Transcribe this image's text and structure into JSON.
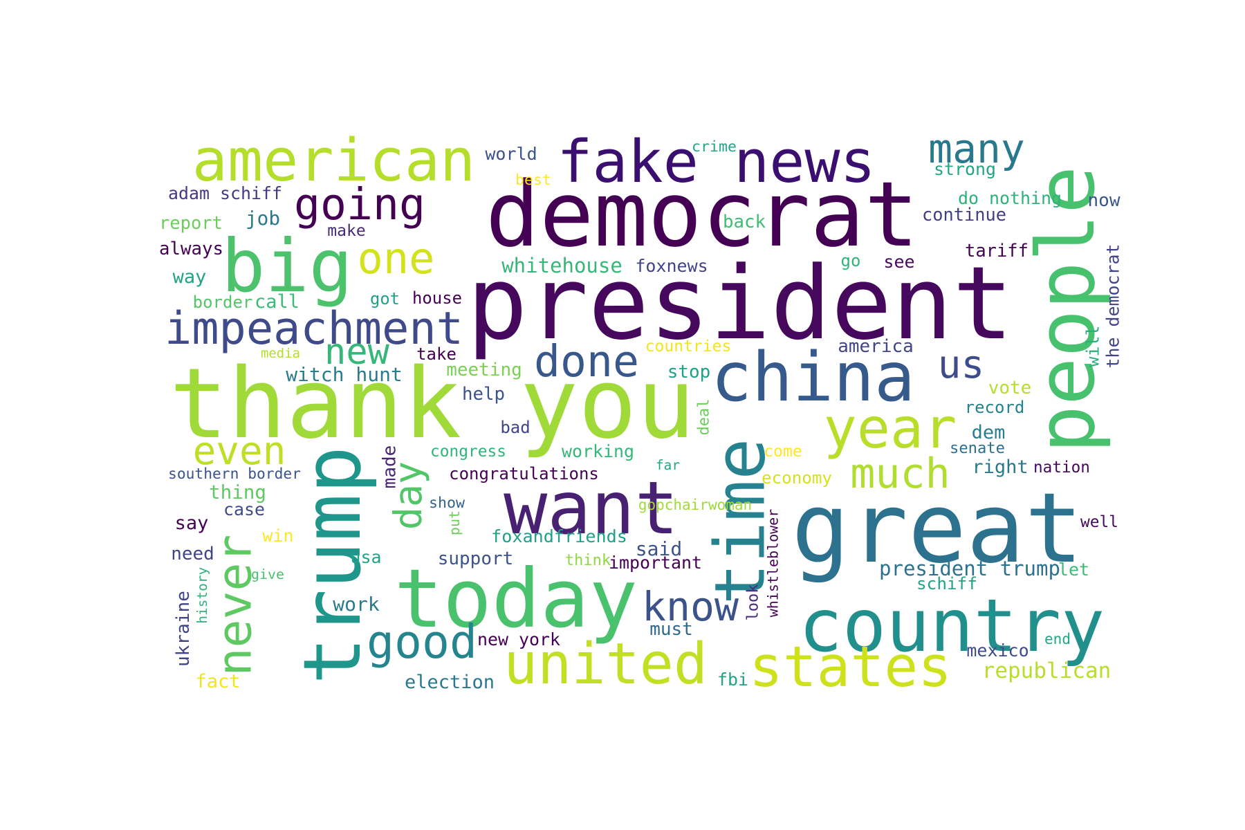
{
  "words": [
    {
      "text": "democrat",
      "color": "#440154"
    },
    {
      "text": "president",
      "color": "#46085c"
    },
    {
      "text": "thank you",
      "color": "#a0da39"
    },
    {
      "text": "great",
      "color": "#2c718e"
    },
    {
      "text": "people",
      "color": "#48c16e"
    },
    {
      "text": "fake news",
      "color": "#3b0f70"
    },
    {
      "text": "american",
      "color": "#b5de2b"
    },
    {
      "text": "want",
      "color": "#482173"
    },
    {
      "text": "trump",
      "color": "#1f968b"
    },
    {
      "text": "today",
      "color": "#4ac16d"
    },
    {
      "text": "country",
      "color": "#21908d"
    },
    {
      "text": "time",
      "color": "#26828e"
    },
    {
      "text": "china",
      "color": "#375a8c"
    },
    {
      "text": "big",
      "color": "#4cc26c"
    },
    {
      "text": "united",
      "color": "#c2df23"
    },
    {
      "text": "states",
      "color": "#cde11d"
    },
    {
      "text": "never",
      "color": "#5ec962"
    },
    {
      "text": "year",
      "color": "#b8de29"
    },
    {
      "text": "impeachment",
      "color": "#3e4a89"
    },
    {
      "text": "going",
      "color": "#440154"
    },
    {
      "text": "many",
      "color": "#2a788e"
    },
    {
      "text": "good",
      "color": "#25858e"
    },
    {
      "text": "done",
      "color": "#38588c"
    },
    {
      "text": "one",
      "color": "#d2e21b"
    },
    {
      "text": "much",
      "color": "#b0dd2f"
    },
    {
      "text": "know",
      "color": "#3b528b"
    },
    {
      "text": "even",
      "color": "#bddf26"
    },
    {
      "text": "day",
      "color": "#52c569"
    },
    {
      "text": "new",
      "color": "#35b779"
    },
    {
      "text": "us",
      "color": "#3e4c8a"
    },
    {
      "text": "world",
      "color": "#3b528b"
    },
    {
      "text": "crime",
      "color": "#22a785"
    },
    {
      "text": "best",
      "color": "#fde725"
    },
    {
      "text": "strong",
      "color": "#21a685"
    },
    {
      "text": "adam schiff",
      "color": "#443a83"
    },
    {
      "text": "do nothing",
      "color": "#2db27d"
    },
    {
      "text": "now",
      "color": "#39568c"
    },
    {
      "text": "continue",
      "color": "#433e85"
    },
    {
      "text": "report",
      "color": "#6ccd5a"
    },
    {
      "text": "job",
      "color": "#2a788e"
    },
    {
      "text": "make",
      "color": "#482878"
    },
    {
      "text": "back",
      "color": "#40bd72"
    },
    {
      "text": "always",
      "color": "#440154"
    },
    {
      "text": "tariff",
      "color": "#440154"
    },
    {
      "text": "go",
      "color": "#2fb47c"
    },
    {
      "text": "see",
      "color": "#46085c"
    },
    {
      "text": "whitehouse",
      "color": "#35b779"
    },
    {
      "text": "foxnews",
      "color": "#414487"
    },
    {
      "text": "way",
      "color": "#20a386"
    },
    {
      "text": "border",
      "color": "#54c568"
    },
    {
      "text": "call",
      "color": "#3bbb75"
    },
    {
      "text": "got",
      "color": "#1fa088"
    },
    {
      "text": "house",
      "color": "#440154"
    },
    {
      "text": "the democrat",
      "color": "#414487"
    },
    {
      "text": "will",
      "color": "#2ab07f"
    },
    {
      "text": "america",
      "color": "#404688"
    },
    {
      "text": "media",
      "color": "#b5de2b"
    },
    {
      "text": "take",
      "color": "#440154"
    },
    {
      "text": "countries",
      "color": "#f1e51d"
    },
    {
      "text": "witch hunt",
      "color": "#297b8e"
    },
    {
      "text": "meeting",
      "color": "#7ad151"
    },
    {
      "text": "stop",
      "color": "#1fa187"
    },
    {
      "text": "help",
      "color": "#3b528b"
    },
    {
      "text": "vote",
      "color": "#b5de2b"
    },
    {
      "text": "record",
      "color": "#26828e"
    },
    {
      "text": "bad",
      "color": "#414487"
    },
    {
      "text": "deal",
      "color": "#6ccd5a"
    },
    {
      "text": "dem",
      "color": "#287d8e"
    },
    {
      "text": "made",
      "color": "#482576"
    },
    {
      "text": "congress",
      "color": "#2fb47c"
    },
    {
      "text": "working",
      "color": "#35b779"
    },
    {
      "text": "senate",
      "color": "#2e6e8e"
    },
    {
      "text": "come",
      "color": "#fde725"
    },
    {
      "text": "far",
      "color": "#22a785"
    },
    {
      "text": "southern border",
      "color": "#3b528b"
    },
    {
      "text": "congratulations",
      "color": "#440154"
    },
    {
      "text": "right",
      "color": "#2a788e"
    },
    {
      "text": "nation",
      "color": "#46085c"
    },
    {
      "text": "economy",
      "color": "#d8e219"
    },
    {
      "text": "thing",
      "color": "#5ec962"
    },
    {
      "text": "case",
      "color": "#3e4a89"
    },
    {
      "text": "show",
      "color": "#33638d"
    },
    {
      "text": "put",
      "color": "#6ccd5a"
    },
    {
      "text": "gopchairwoman",
      "color": "#a0da39"
    },
    {
      "text": "say",
      "color": "#440154"
    },
    {
      "text": "whistleblower",
      "color": "#440154"
    },
    {
      "text": "well",
      "color": "#46085c"
    },
    {
      "text": "win",
      "color": "#fde725"
    },
    {
      "text": "foxandfriends",
      "color": "#1fa088"
    },
    {
      "text": "said",
      "color": "#3b528b"
    },
    {
      "text": "need",
      "color": "#414487"
    },
    {
      "text": "usa",
      "color": "#20a386"
    },
    {
      "text": "support",
      "color": "#3b528b"
    },
    {
      "text": "think",
      "color": "#8fd744"
    },
    {
      "text": "important",
      "color": "#440154"
    },
    {
      "text": "give",
      "color": "#4ac16d"
    },
    {
      "text": "president trump",
      "color": "#2c728e"
    },
    {
      "text": "let",
      "color": "#3bbb75"
    },
    {
      "text": "look",
      "color": "#482878"
    },
    {
      "text": "history",
      "color": "#2db27d"
    },
    {
      "text": "schiff",
      "color": "#20a386"
    },
    {
      "text": "ukraine",
      "color": "#414487"
    },
    {
      "text": "work",
      "color": "#2a788e"
    },
    {
      "text": "must",
      "color": "#31688e"
    },
    {
      "text": "new york",
      "color": "#440154"
    },
    {
      "text": "end",
      "color": "#22a785"
    },
    {
      "text": "mexico",
      "color": "#3e4c8a"
    },
    {
      "text": "fact",
      "color": "#f1e51d"
    },
    {
      "text": "election",
      "color": "#2a788e"
    },
    {
      "text": "fbi",
      "color": "#20a386"
    },
    {
      "text": "republican",
      "color": "#b8de29"
    }
  ]
}
